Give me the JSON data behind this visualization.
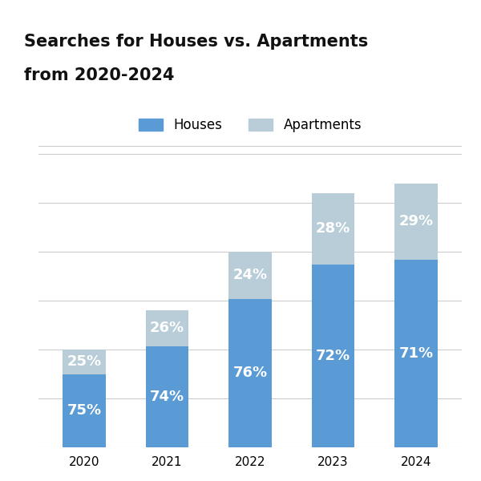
{
  "title_line1": "Searches for Houses vs. Apartments",
  "title_line2": "from 2020-2024",
  "years": [
    "2020",
    "2021",
    "2022",
    "2023",
    "2024"
  ],
  "houses_pct": [
    75,
    74,
    76,
    72,
    71
  ],
  "apartments_pct": [
    25,
    26,
    24,
    28,
    29
  ],
  "total_heights": [
    1.0,
    1.4,
    2.0,
    2.6,
    2.7
  ],
  "houses_color": "#5b9bd5",
  "apartments_color": "#b8cdd8",
  "background_color": "#ffffff",
  "title_fontsize": 15,
  "label_fontsize": 13,
  "tick_fontsize": 11,
  "legend_fontsize": 12,
  "bar_width": 0.52
}
